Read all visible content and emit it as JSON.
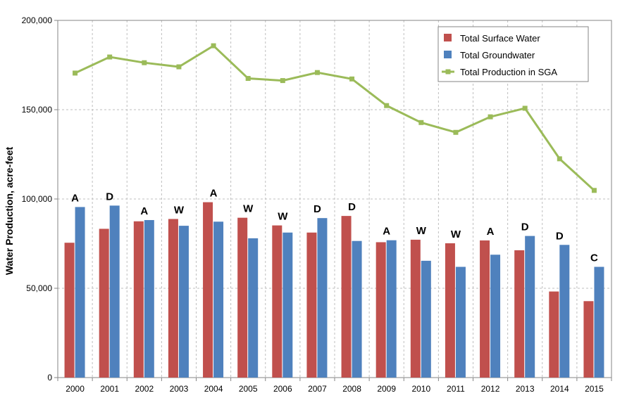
{
  "chart_data": {
    "type": "bar",
    "categories": [
      "2000",
      "2001",
      "2002",
      "2003",
      "2004",
      "2005",
      "2006",
      "2007",
      "2008",
      "2009",
      "2010",
      "2011",
      "2012",
      "2013",
      "2014",
      "2015"
    ],
    "series": [
      {
        "name": "Total Surface Water",
        "type": "bar",
        "color": "#c0504d",
        "values": [
          75500,
          83300,
          87500,
          88800,
          98200,
          89500,
          85200,
          81200,
          90500,
          75800,
          77200,
          75200,
          76800,
          71300,
          48200,
          42800
        ]
      },
      {
        "name": "Total Groundwater",
        "type": "bar",
        "color": "#4f81bd",
        "values": [
          95500,
          96300,
          88200,
          85000,
          87300,
          78000,
          81200,
          89300,
          76500,
          76900,
          65400,
          62000,
          68800,
          79300,
          74300,
          62000
        ]
      },
      {
        "name": "Total Production in SGA",
        "type": "line",
        "color": "#9bbb59",
        "values": [
          170500,
          179500,
          176300,
          174000,
          185800,
          167500,
          166300,
          170800,
          167200,
          152300,
          142800,
          137300,
          146000,
          150800,
          122500,
          104800
        ]
      }
    ],
    "bar_labels": [
      "A",
      "D",
      "A",
      "W",
      "A",
      "W",
      "W",
      "D",
      "D",
      "A",
      "W",
      "W",
      "A",
      "D",
      "D",
      "C"
    ],
    "ylabel": "Water Production, acre-feet",
    "xlabel": "",
    "ylim": [
      0,
      200000
    ],
    "yticks": [
      0,
      50000,
      100000,
      150000,
      200000
    ],
    "ytick_labels": [
      "0",
      "50,000",
      "100,000",
      "150,000",
      "200,000"
    ],
    "grid": true,
    "legend_position": "top-right"
  }
}
